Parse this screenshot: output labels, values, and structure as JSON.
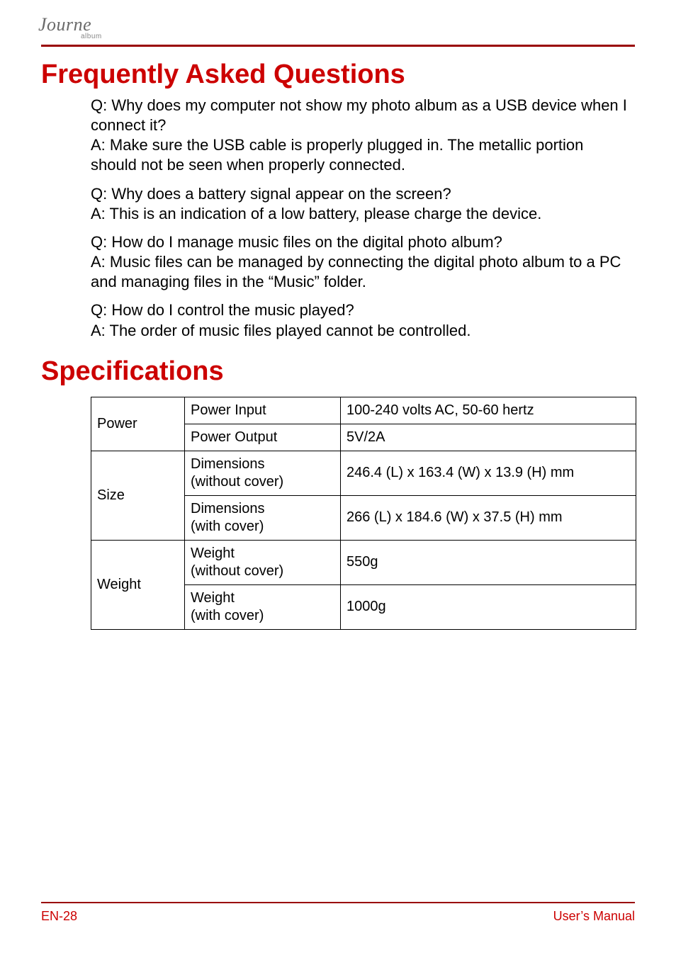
{
  "logo": {
    "main": "Journe",
    "sub": "album"
  },
  "colors": {
    "accent": "#cc0000",
    "rule": "#990000",
    "text": "#000000",
    "background": "#ffffff"
  },
  "faq": {
    "heading": "Frequently Asked Questions",
    "items": [
      {
        "q": "Q: Why does my computer not show my photo album as a USB device when I connect it?",
        "a": "A: Make sure the USB cable is properly plugged in. The metallic portion should not be seen when properly connected."
      },
      {
        "q": "Q: Why does a battery signal appear on the screen?",
        "a": "A: This is an indication of a low battery, please charge the device."
      },
      {
        "q": "Q: How do I manage music files on the digital photo album?",
        "a": "A: Music files can be managed by connecting the digital photo album to a PC and managing files in the “Music” folder."
      },
      {
        "q": "Q: How do I control the music played?",
        "a": "A: The order of music files played cannot be controlled."
      }
    ]
  },
  "specs": {
    "heading": "Specifications",
    "table": {
      "type": "table",
      "border_color": "#000000",
      "font_size_pt": 15,
      "groups": [
        {
          "category": "Power",
          "rows": [
            {
              "label": "Power Input",
              "value": "100-240 volts AC, 50-60 hertz"
            },
            {
              "label": "Power Output",
              "value": "5V/2A"
            }
          ]
        },
        {
          "category": "Size",
          "rows": [
            {
              "label": "Dimensions\n(without cover)",
              "value": "246.4 (L) x 163.4 (W) x 13.9 (H) mm"
            },
            {
              "label": "Dimensions\n(with cover)",
              "value": "266 (L) x 184.6 (W) x 37.5 (H) mm"
            }
          ]
        },
        {
          "category": "Weight",
          "rows": [
            {
              "label": "Weight\n(without cover)",
              "value": "550g"
            },
            {
              "label": "Weight\n(with cover)",
              "value": "1000g"
            }
          ]
        }
      ]
    }
  },
  "footer": {
    "left": "EN-28",
    "right": "User’s Manual"
  }
}
